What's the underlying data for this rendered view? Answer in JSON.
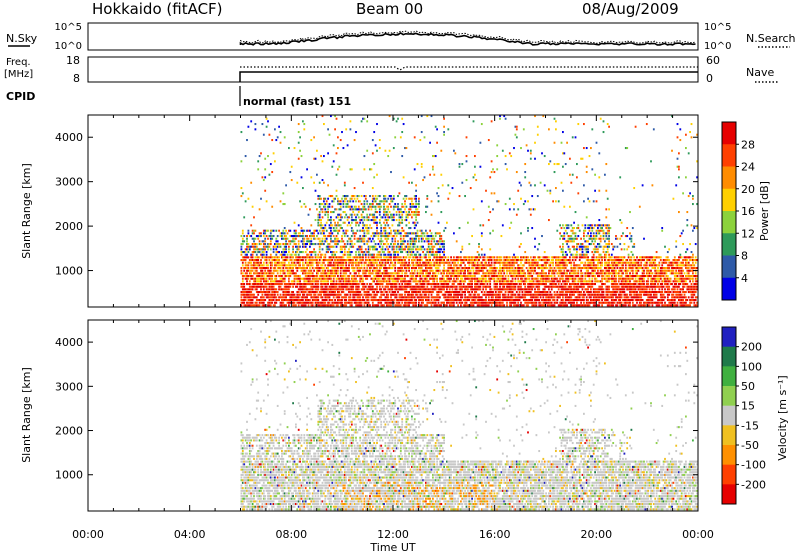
{
  "header": {
    "station": "Hokkaido (fitACF)",
    "beam": "Beam 00",
    "date": "08/Aug/2009"
  },
  "noise_panel": {
    "left_label": "N.Sky",
    "left_ticks": [
      "10^5",
      "10^0"
    ],
    "right_ticks": [
      "10^5",
      "10^0"
    ],
    "right_label": "N.Search"
  },
  "freq_panel": {
    "left_label_1": "Freq.",
    "left_label_2": "[MHz]",
    "left_ticks": [
      "18",
      "8"
    ],
    "right_ticks": [
      "60",
      "0"
    ],
    "right_label": "Nave"
  },
  "cpid": {
    "label": "CPID",
    "mode_text": "normal (fast) 151"
  },
  "chart_data": [
    {
      "type": "heatmap",
      "name": "power",
      "ylabel": "Slant Range [km]",
      "yticks": [
        "4000",
        "3000",
        "2000",
        "1000"
      ],
      "ytick_values": [
        4000,
        3000,
        2000,
        1000
      ],
      "ylim": [
        180,
        4500
      ],
      "colorbar_label": "Power [dB]",
      "colorbar_ticks": [
        "28",
        "24",
        "20",
        "16",
        "12",
        "8",
        "4"
      ],
      "colorbar_colors": [
        "#e60000",
        "#ff4000",
        "#ff8c00",
        "#ffd000",
        "#8cd23c",
        "#2e9a5a",
        "#2e5aa8",
        "#0000e6"
      ],
      "data_start_hour": 6
    },
    {
      "type": "heatmap",
      "name": "velocity",
      "ylabel": "Slant Range [km]",
      "yticks": [
        "4000",
        "3000",
        "2000",
        "1000"
      ],
      "ytick_values": [
        4000,
        3000,
        2000,
        1000
      ],
      "ylim": [
        180,
        4500
      ],
      "colorbar_label": "Velocity [m s⁻¹]",
      "colorbar_ticks": [
        "200",
        "100",
        "50",
        "15",
        "-15",
        "-50",
        "-100",
        "-200"
      ],
      "colorbar_colors": [
        "#2020c0",
        "#1f7a4a",
        "#40b040",
        "#90d050",
        "#c8c8c8",
        "#f0c020",
        "#ff9000",
        "#ff4000",
        "#e60000"
      ],
      "data_start_hour": 6
    }
  ],
  "time_axis": {
    "ticks": [
      "00:00",
      "04:00",
      "08:00",
      "12:00",
      "16:00",
      "20:00",
      "00:00"
    ],
    "tick_hours": [
      0,
      4,
      8,
      12,
      16,
      20,
      24
    ],
    "xlabel": "Time UT"
  }
}
